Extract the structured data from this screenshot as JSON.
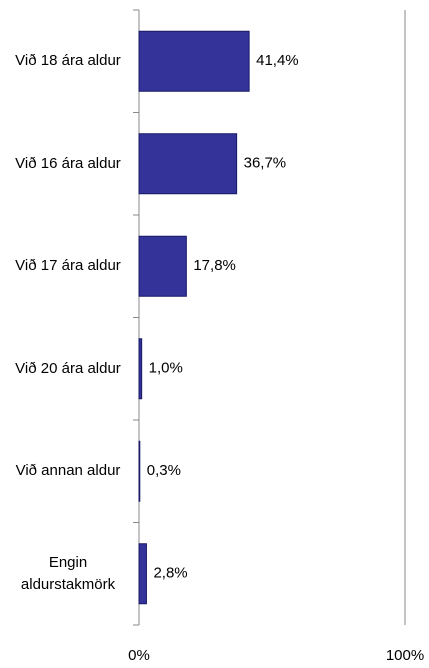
{
  "chart_data": {
    "type": "barh",
    "categories": [
      "Við 18 ára aldur",
      "Við 16 ára aldur",
      "Við 17 ára aldur",
      "Við 20 ára aldur",
      "Við annan aldur",
      "Engin aldurstakmörk"
    ],
    "values": [
      41.4,
      36.7,
      17.8,
      1.0,
      0.3,
      2.8
    ],
    "value_labels": [
      "41,4%",
      "36,7%",
      "17,8%",
      "1,0%",
      "0,3%",
      "2,8%"
    ],
    "color": "#333399",
    "xlim": [
      0,
      100
    ],
    "xticks": [
      {
        "value": 0,
        "label": "0%"
      },
      {
        "value": 100,
        "label": "100%"
      }
    ]
  }
}
